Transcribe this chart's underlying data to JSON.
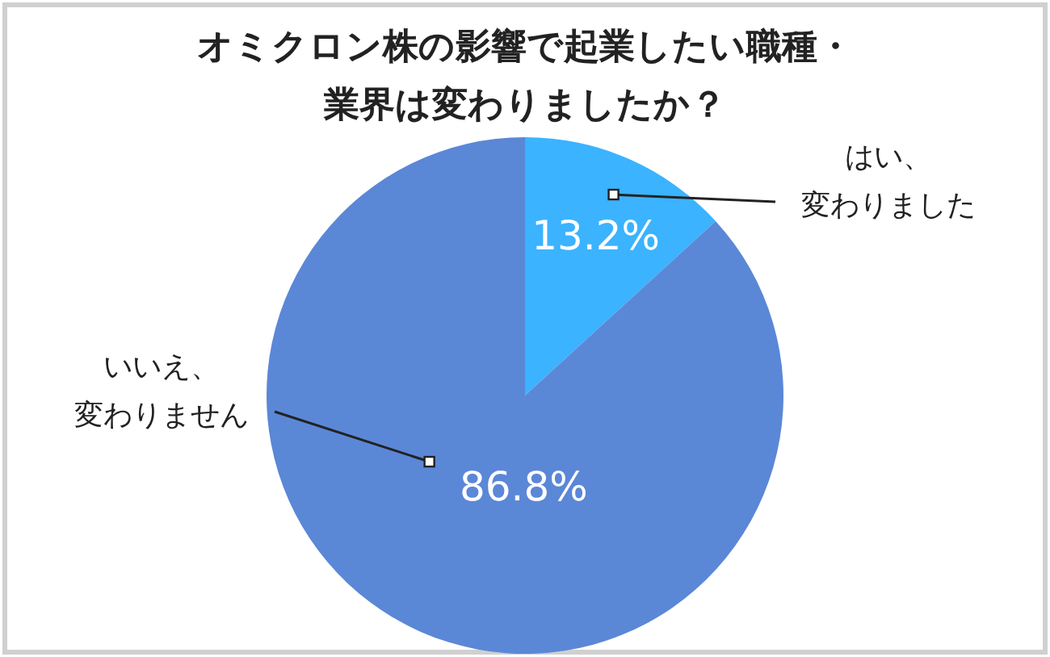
{
  "chart_data": {
    "type": "pie",
    "title": "オミクロン株の影響で起業したい職種・業界は変わりましたか？",
    "categories": [
      "はい、変わりました",
      "いいえ、変わりません"
    ],
    "values": [
      13.2,
      86.8
    ],
    "value_labels": [
      "13.2%",
      "86.8%"
    ],
    "colors": [
      "#3bb3ff",
      "#5b87d7"
    ]
  }
}
